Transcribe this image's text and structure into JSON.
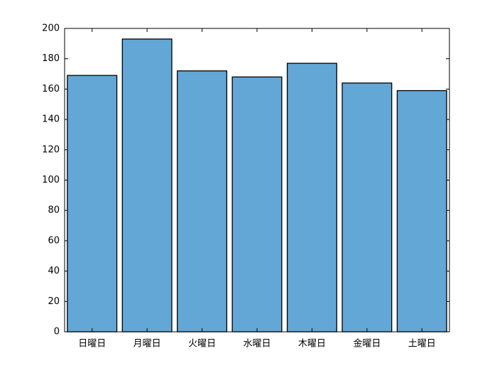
{
  "chart_data": {
    "type": "bar",
    "categories": [
      "日曜日",
      "月曜日",
      "火曜日",
      "水曜日",
      "木曜日",
      "金曜日",
      "土曜日"
    ],
    "values": [
      169,
      193,
      172,
      168,
      177,
      164,
      159
    ],
    "color": "#62a7d6",
    "ylim": [
      0,
      200
    ],
    "yticks": [
      0,
      20,
      40,
      60,
      80,
      100,
      120,
      140,
      160,
      180,
      200
    ],
    "grid": false
  }
}
